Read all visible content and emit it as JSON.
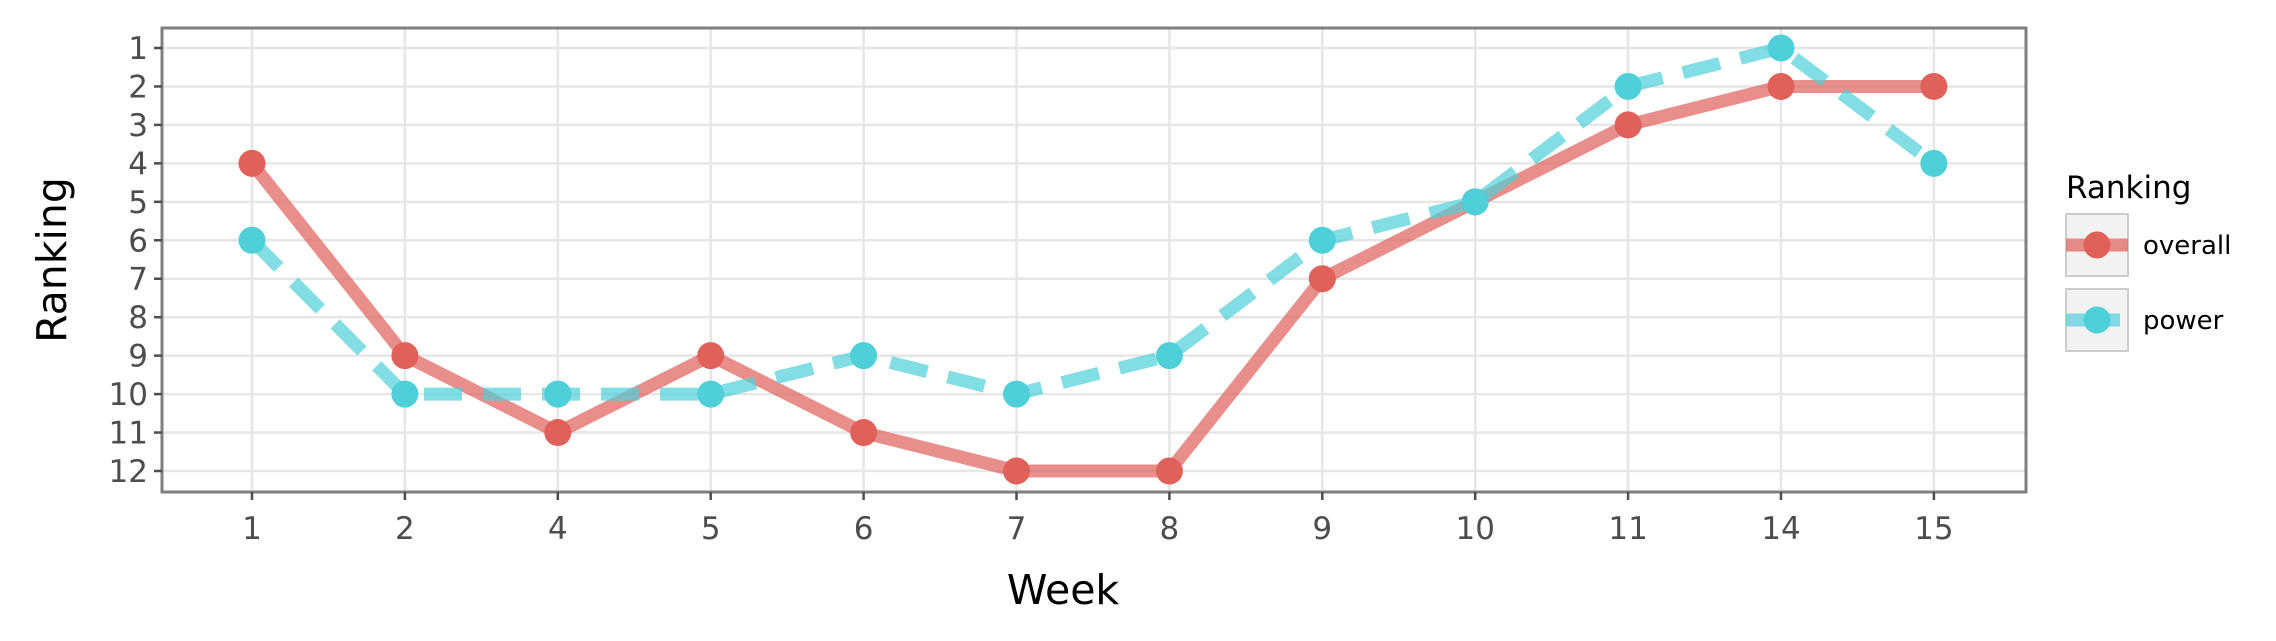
{
  "chart_data": {
    "type": "line",
    "title": "",
    "xlabel": "Week",
    "ylabel": "Ranking",
    "categories": [
      "1",
      "2",
      "4",
      "5",
      "6",
      "7",
      "8",
      "9",
      "10",
      "11",
      "14",
      "15"
    ],
    "y_ticks": [
      1,
      2,
      3,
      4,
      5,
      6,
      7,
      8,
      9,
      10,
      11,
      12
    ],
    "ylim": [
      12,
      1
    ],
    "y_reversed": true,
    "grid": true,
    "legend": {
      "title": "Ranking",
      "placement": "right"
    },
    "series": [
      {
        "name": "overall",
        "color": "#e0605a",
        "line_style": "solid",
        "values": [
          4,
          9,
          11,
          9,
          11,
          12,
          12,
          7,
          5,
          3,
          2,
          2
        ]
      },
      {
        "name": "power",
        "color": "#4fcfd8",
        "line_style": "dashed",
        "values": [
          6,
          10,
          10,
          10,
          9,
          10,
          9,
          6,
          5,
          2,
          1,
          4
        ]
      }
    ]
  }
}
